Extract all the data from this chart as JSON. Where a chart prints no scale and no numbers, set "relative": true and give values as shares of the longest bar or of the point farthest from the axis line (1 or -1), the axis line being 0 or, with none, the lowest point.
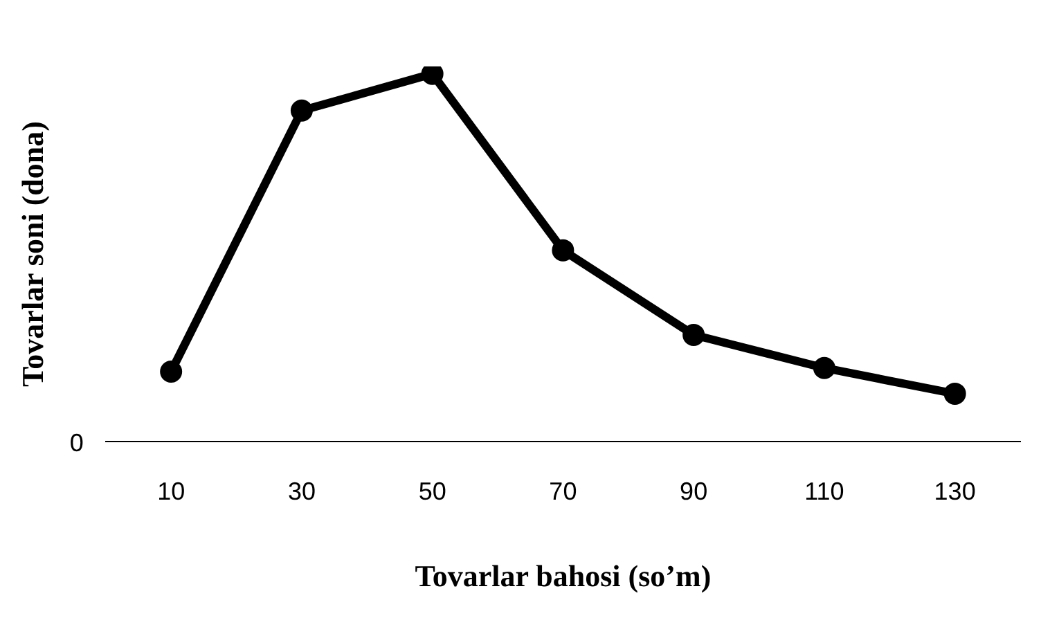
{
  "chart_data": {
    "type": "line",
    "xlabel": "Tovarlar bahosi (so’m)",
    "ylabel": "Tovarlar soni (dona)",
    "relative": true,
    "categories": [
      "10",
      "30",
      "50",
      "70",
      "90",
      "110",
      "130"
    ],
    "series": [
      {
        "color": "#000000",
        "values": [
          0.19,
          0.9,
          1,
          0.52,
          0.29,
          0.2,
          0.13
        ]
      }
    ],
    "annotations": [
      "0"
    ],
    "marker": "circle",
    "line_style": "solid",
    "grid": false,
    "legend": false
  }
}
